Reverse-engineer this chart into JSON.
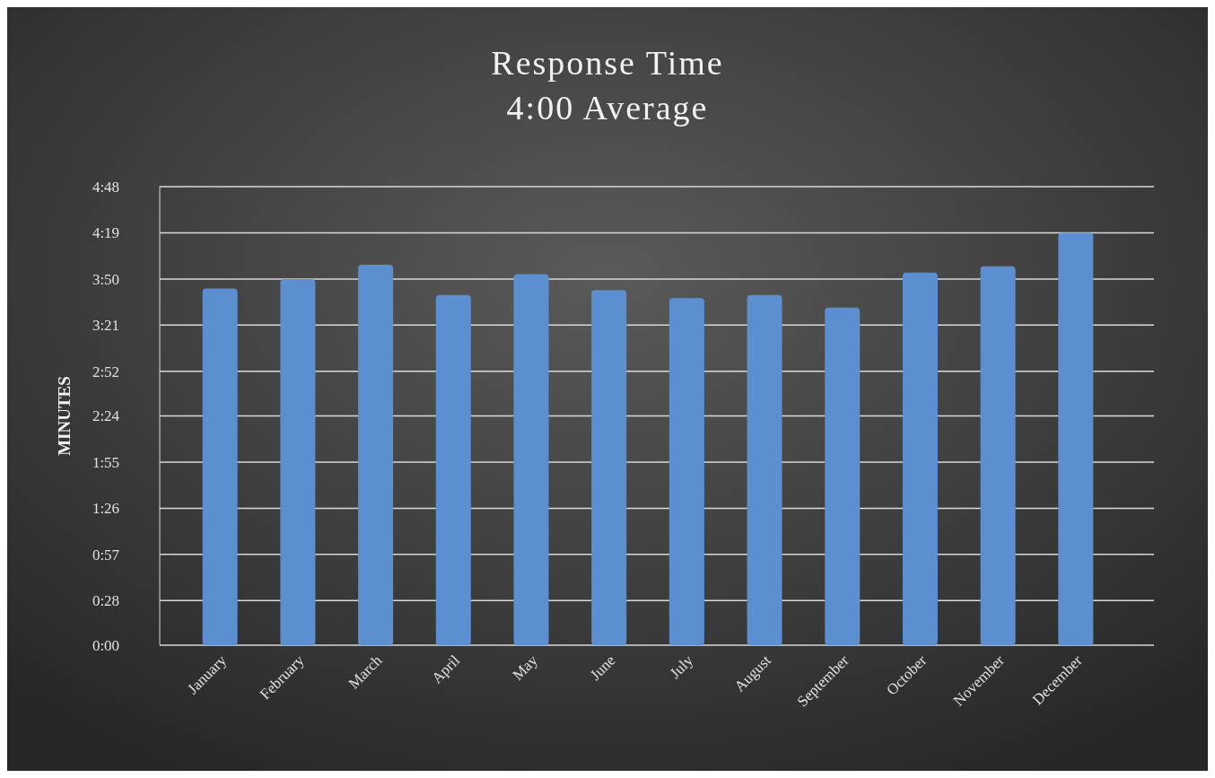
{
  "chart_data": {
    "type": "bar",
    "title": "Response Time",
    "subtitle": "4:00 Average",
    "ylabel": "MINUTES",
    "categories": [
      "January",
      "February",
      "March",
      "April",
      "May",
      "June",
      "July",
      "August",
      "September",
      "October",
      "November",
      "December"
    ],
    "values": [
      224,
      230,
      239,
      220,
      233,
      223,
      218,
      220,
      212,
      234,
      238,
      259
    ],
    "color": "#5b8fd0",
    "ylim": [
      0,
      288
    ],
    "yticks": [
      {
        "value": 0,
        "label": "0:00"
      },
      {
        "value": 28,
        "label": "0:28"
      },
      {
        "value": 57,
        "label": "0:57"
      },
      {
        "value": 86,
        "label": "1:26"
      },
      {
        "value": 115,
        "label": "1:55"
      },
      {
        "value": 144,
        "label": "2:24"
      },
      {
        "value": 172,
        "label": "2:52"
      },
      {
        "value": 201,
        "label": "3:21"
      },
      {
        "value": 230,
        "label": "3:50"
      },
      {
        "value": 259,
        "label": "4:19"
      },
      {
        "value": 288,
        "label": "4:48"
      }
    ],
    "grid": "y"
  }
}
